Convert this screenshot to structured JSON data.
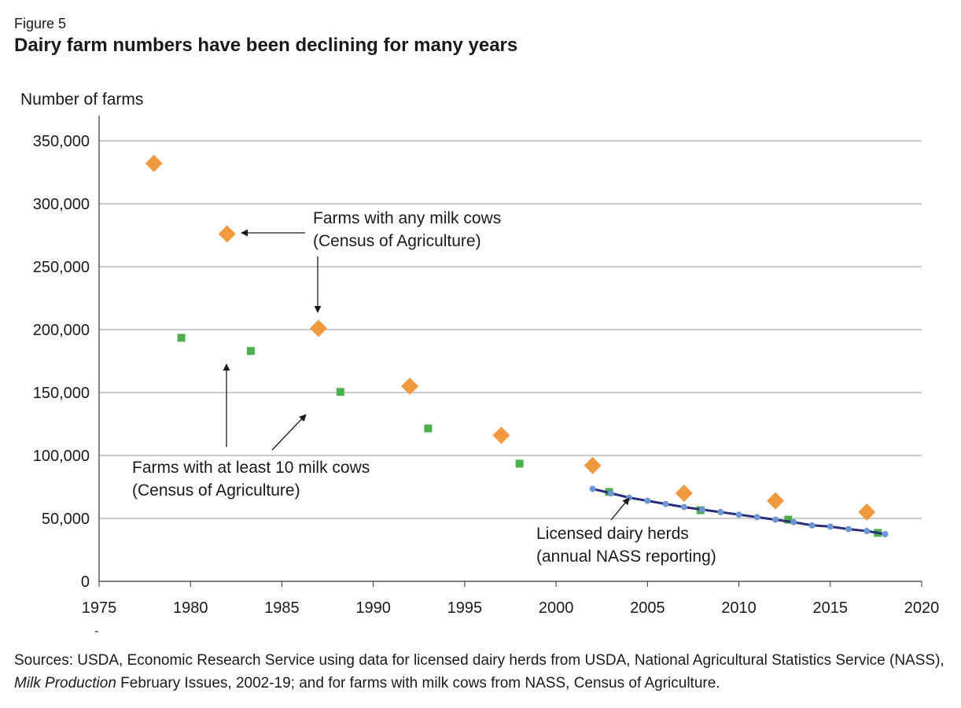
{
  "figure_label": "Figure 5",
  "chart_data": {
    "type": "scatter",
    "title": "Dairy farm numbers have been declining for many years",
    "ylabel": "Number of farms",
    "xlim": [
      1975,
      2020
    ],
    "ylim": [
      0,
      350000
    ],
    "x_ticks": [
      "1975",
      "1980",
      "1985",
      "1990",
      "1995",
      "2000",
      "2005",
      "2010",
      "2015",
      "2020"
    ],
    "y_ticks": [
      "0",
      "50,000",
      "100,000",
      "150,000",
      "200,000",
      "250,000",
      "300,000",
      "350,000"
    ],
    "grid": "horizontal",
    "colors": {
      "any_milk_cows": "#f0993e",
      "at_least_10": "#4cae4c",
      "licensed": "#6f95d4",
      "licensed_line": "#2a2f7a"
    },
    "series": [
      {
        "key": "any_milk_cows",
        "marker": "diamond",
        "x": [
          1978,
          1982,
          1987,
          1992,
          1997,
          2002,
          2007,
          2012,
          2017
        ],
        "y": [
          332000,
          276000,
          201000,
          155000,
          116000,
          92000,
          70000,
          64000,
          55000
        ]
      },
      {
        "key": "at_least_10",
        "marker": "square",
        "x": [
          1979.5,
          1983.3,
          1988.2,
          1993,
          1998,
          2002.9,
          2007.9,
          2012.7,
          2017.6
        ],
        "y": [
          193500,
          183000,
          150500,
          121500,
          93500,
          71000,
          56500,
          49000,
          38500
        ]
      },
      {
        "key": "licensed",
        "marker": "circle",
        "line": true,
        "x": [
          2002,
          2003,
          2004,
          2005,
          2006,
          2007,
          2008,
          2009,
          2010,
          2011,
          2012,
          2013,
          2014,
          2015,
          2016,
          2017,
          2018
        ],
        "y": [
          73500,
          70000,
          66500,
          64000,
          61500,
          59000,
          57000,
          55000,
          53000,
          51000,
          49000,
          47000,
          44500,
          43500,
          41500,
          40000,
          37500
        ]
      }
    ],
    "annotations": [
      {
        "key": "any",
        "lines": [
          "Farms with any milk cows",
          "(Census of Agriculture)"
        ]
      },
      {
        "key": "ten",
        "lines": [
          "Farms with at least 10 milk cows",
          "(Census of Agriculture)"
        ]
      },
      {
        "key": "lic",
        "lines": [
          "Licensed dairy herds",
          "(annual NASS reporting)"
        ]
      }
    ]
  },
  "sources": {
    "part1": "Sources: USDA, Economic Research Service using data for licensed dairy herds from USDA, National Agricultural Statistics Service (NASS), ",
    "italic": "Milk Production",
    "part2": " February Issues, 2002-19; and for farms with milk cows from NASS, Census of Agriculture."
  },
  "stray_mark": "-"
}
